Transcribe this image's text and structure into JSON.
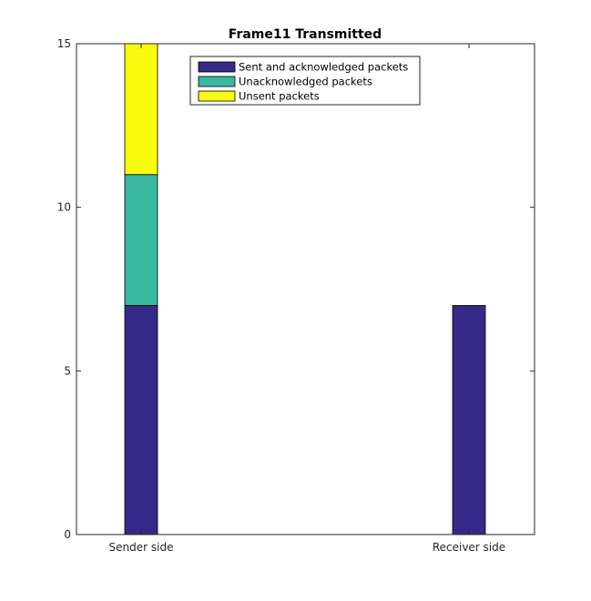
{
  "chart_data": {
    "type": "bar",
    "stacked": true,
    "title": "Frame11 Transmitted",
    "categories": [
      "Sender side",
      "Receiver side"
    ],
    "series": [
      {
        "name": "Sent and acknowledged packets",
        "values": [
          7,
          7
        ],
        "color": "#352a87"
      },
      {
        "name": "Unacknowledged packets",
        "values": [
          4,
          0
        ],
        "color": "#38b89e"
      },
      {
        "name": "Unsent packets",
        "values": [
          4,
          0
        ],
        "color": "#f9fb0e"
      }
    ],
    "ylim": [
      0,
      15
    ],
    "yticks": [
      0,
      5,
      10,
      15
    ],
    "xlabel": "",
    "ylabel": "",
    "grid": false,
    "legend_position": "top"
  }
}
